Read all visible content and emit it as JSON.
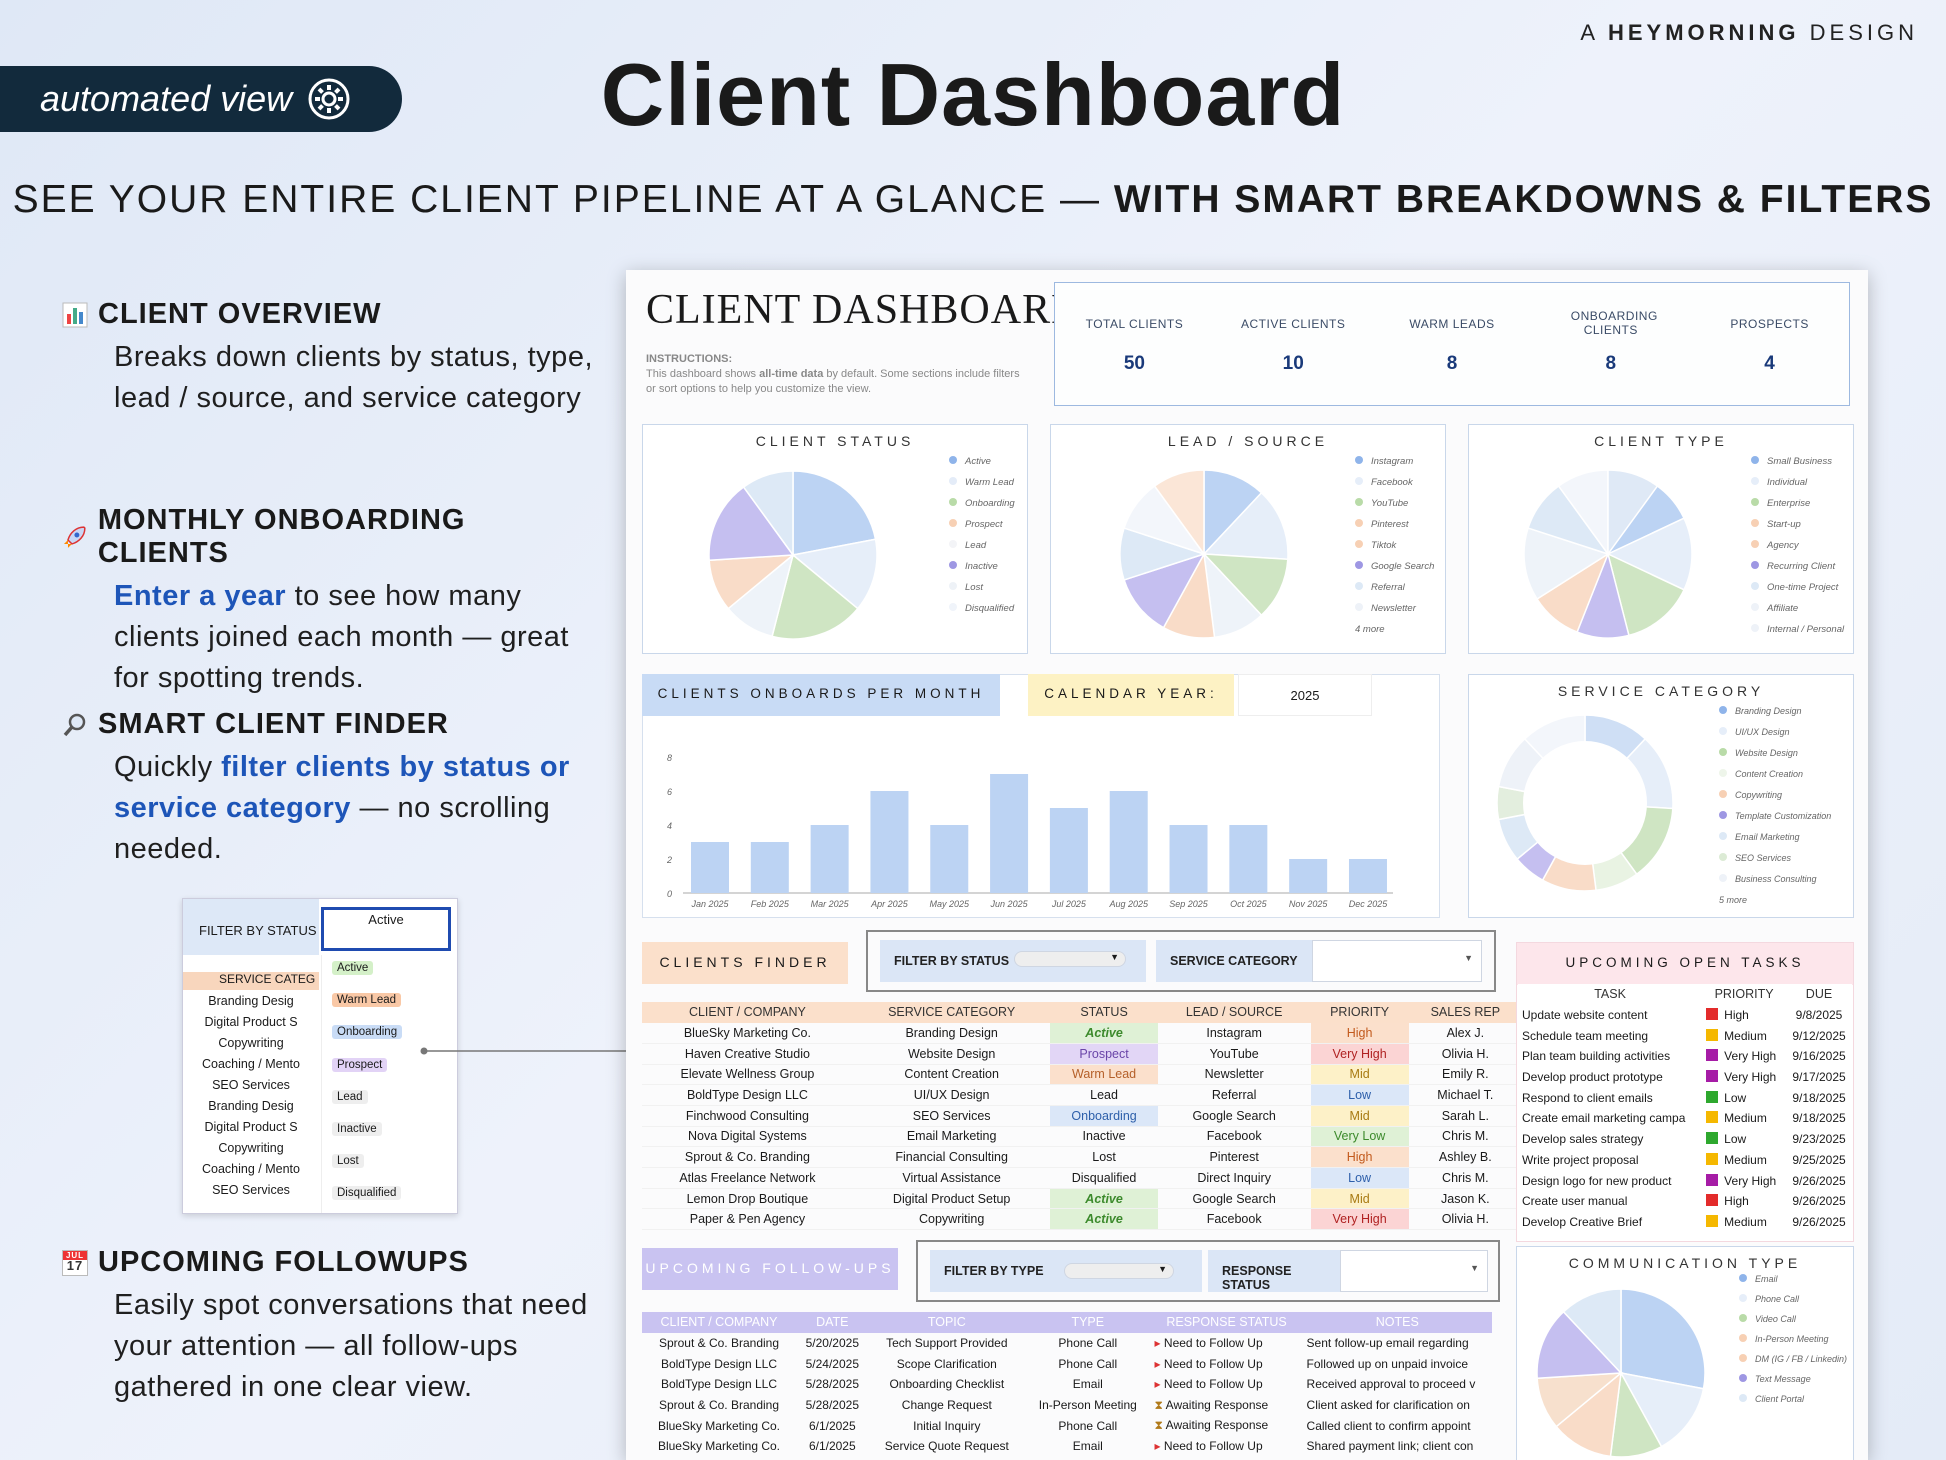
{
  "header": {
    "brand_prefix": "A",
    "brand_name": "HEYMORNING",
    "brand_suffix": "DESIGN",
    "auto_pill": "automated view",
    "title": "Client Dashboard",
    "subtitle_a": "SEE YOUR ENTIRE CLIENT PIPELINE AT A GLANCE —",
    "subtitle_b": "WITH SMART BREAKDOWNS & FILTERS"
  },
  "features": [
    {
      "title": "CLIENT OVERVIEW",
      "icon": "bar-chart-icon",
      "desc": "Breaks down clients by status, type, lead / source, and service category"
    },
    {
      "title": "MONTHLY ONBOARDING CLIENTS",
      "icon": "rocket-icon",
      "desc_hl": "Enter a year",
      "desc": " to see how many clients joined each month — great for spotting trends."
    },
    {
      "title": "SMART CLIENT FINDER",
      "icon": "magnifier-icon",
      "desc_pre": "Quickly ",
      "desc_hl": "filter clients by status or service category",
      "desc": " — no scrolling needed."
    },
    {
      "title": "UPCOMING FOLLOWUPS",
      "icon": "calendar-icon",
      "desc": "Easily spot conversations that need your attention — all follow-ups gathered in one clear view."
    }
  ],
  "calendar_icon_day": "17",
  "calendar_icon_month": "JUL",
  "inset": {
    "filter_label": "FILTER BY STATUS",
    "selected": "Active",
    "service_label": "SERVICE CATEG",
    "services": [
      "Branding Desig",
      "Digital Product S",
      "Copywriting",
      "Coaching / Mento",
      "SEO Services",
      "Branding Desig",
      "Digital Product S",
      "Copywriting",
      "Coaching / Mento",
      "SEO Services"
    ],
    "options": [
      {
        "label": "Active",
        "color": "#d4f0c8"
      },
      {
        "label": "Warm Lead",
        "color": "#f9c8a6"
      },
      {
        "label": "Onboarding",
        "color": "#c9dcf6"
      },
      {
        "label": "Prospect",
        "color": "#e2d3f6"
      },
      {
        "label": "Lead",
        "color": "#eeeeee"
      },
      {
        "label": "Inactive",
        "color": "#eeeeee"
      },
      {
        "label": "Lost",
        "color": "#eeeeee"
      },
      {
        "label": "Disqualified",
        "color": "#eeeeee"
      }
    ]
  },
  "dashboard": {
    "title": "CLIENT DASHBOARD",
    "instructions_label": "INSTRUCTIONS:",
    "instructions_pre": "This dashboard shows ",
    "instructions_bold": "all-time data",
    "instructions_post": " by default. Some sections include filters or sort options to help you customize the view.",
    "kpis": [
      {
        "label": "TOTAL CLIENTS",
        "value": "50"
      },
      {
        "label": "ACTIVE CLIENTS",
        "value": "10"
      },
      {
        "label": "WARM LEADS",
        "value": "8"
      },
      {
        "label": "ONBOARDING CLIENTS",
        "value": "8"
      },
      {
        "label": "PROSPECTS",
        "value": "4"
      }
    ],
    "status_title": "CLIENT STATUS",
    "status_legend": [
      "Active",
      "Warm Lead",
      "Onboarding",
      "Prospect",
      "Lead",
      "Inactive",
      "Lost",
      "Disqualified"
    ],
    "source_title": "LEAD / SOURCE",
    "source_legend": [
      "Instagram",
      "Facebook",
      "YouTube",
      "Pinterest",
      "Tiktok",
      "Google Search",
      "Referral",
      "Newsletter"
    ],
    "source_more": "4 more",
    "type_title": "CLIENT TYPE",
    "type_legend": [
      "Small Business",
      "Individual",
      "Enterprise",
      "Start-up",
      "Agency",
      "Recurring Client",
      "One-time Project",
      "Affiliate",
      "Internal / Personal"
    ],
    "onboard_title": "CLIENTS ONBOARDS PER MONTH",
    "calendar_label": "CALENDAR YEAR:",
    "calendar_value": "2025",
    "service_title": "SERVICE CATEGORY",
    "service_legend": [
      "Branding Design",
      "UI/UX Design",
      "Website Design",
      "Content Creation",
      "Copywriting",
      "Template Customization",
      "Email Marketing",
      "SEO Services",
      "Business Consulting"
    ],
    "service_more": "5 more",
    "finder_title": "CLIENTS FINDER",
    "filter_status_label": "FILTER BY STATUS",
    "filter_service_label": "SERVICE CATEGORY",
    "finder_headers": [
      "CLIENT / COMPANY",
      "SERVICE CATEGORY",
      "STATUS",
      "LEAD / SOURCE",
      "PRIORITY",
      "SALES REP"
    ],
    "finder_rows": [
      [
        "BlueSky Marketing Co.",
        "Branding Design",
        "Active",
        "Instagram",
        "High",
        "Alex J."
      ],
      [
        "Haven Creative Studio",
        "Website Design",
        "Prospect",
        "YouTube",
        "Very High",
        "Olivia H."
      ],
      [
        "Elevate Wellness Group",
        "Content Creation",
        "Warm Lead",
        "Newsletter",
        "Mid",
        "Emily R."
      ],
      [
        "BoldType Design LLC",
        "UI/UX Design",
        "Lead",
        "Referral",
        "Low",
        "Michael T."
      ],
      [
        "Finchwood Consulting",
        "SEO Services",
        "Onboarding",
        "Google Search",
        "Mid",
        "Sarah L."
      ],
      [
        "Nova Digital Systems",
        "Email Marketing",
        "Inactive",
        "Facebook",
        "Very Low",
        "Chris M."
      ],
      [
        "Sprout & Co. Branding",
        "Financial Consulting",
        "Lost",
        "Pinterest",
        "High",
        "Ashley B."
      ],
      [
        "Atlas Freelance Network",
        "Virtual Assistance",
        "Disqualified",
        "Direct Inquiry",
        "Low",
        "Chris M."
      ],
      [
        "Lemon Drop Boutique",
        "Digital Product Setup",
        "Active",
        "Google Search",
        "Mid",
        "Jason K."
      ],
      [
        "Paper & Pen Agency",
        "Copywriting",
        "Active",
        "Facebook",
        "Very High",
        "Olivia H."
      ]
    ],
    "tasks_title": "UPCOMING OPEN TASKS",
    "tasks_headers": [
      "TASK",
      "PRIORITY",
      "DUE"
    ],
    "tasks_rows": [
      [
        "Update website content",
        "High",
        "9/8/2025"
      ],
      [
        "Schedule team meeting",
        "Medium",
        "9/12/2025"
      ],
      [
        "Plan team building activities",
        "Very High",
        "9/16/2025"
      ],
      [
        "Develop product prototype",
        "Very High",
        "9/17/2025"
      ],
      [
        "Respond to client emails",
        "Low",
        "9/18/2025"
      ],
      [
        "Create email marketing campa",
        "Medium",
        "9/18/2025"
      ],
      [
        "Develop sales strategy",
        "Low",
        "9/23/2025"
      ],
      [
        "Write project proposal",
        "Medium",
        "9/25/2025"
      ],
      [
        "Design logo for new product",
        "Very High",
        "9/26/2025"
      ],
      [
        "Create user manual",
        "High",
        "9/26/2025"
      ],
      [
        "Develop Creative Brief",
        "Medium",
        "9/26/2025"
      ]
    ],
    "followups_title": "UPCOMING FOLLOW-UPS",
    "filter_type_label": "FILTER BY TYPE",
    "response_status_label": "RESPONSE STATUS",
    "followup_headers": [
      "CLIENT / COMPANY",
      "DATE",
      "TOPIC",
      "TYPE",
      "RESPONSE STATUS",
      "NOTES"
    ],
    "followup_rows": [
      [
        "Sprout & Co. Branding",
        "5/20/2025",
        "Tech Support Provided",
        "Phone Call",
        "Need to Follow Up",
        "Sent follow-up email regarding"
      ],
      [
        "BoldType Design LLC",
        "5/24/2025",
        "Scope Clarification",
        "Phone Call",
        "Need to Follow Up",
        "Followed up on unpaid invoice"
      ],
      [
        "BoldType Design LLC",
        "5/28/2025",
        "Onboarding Checklist",
        "Email",
        "Need to Follow Up",
        "Received approval to proceed v"
      ],
      [
        "Sprout & Co. Branding",
        "5/28/2025",
        "Change Request",
        "In-Person Meeting",
        "Awaiting Response",
        "Client asked for clarification on"
      ],
      [
        "BlueSky Marketing Co.",
        "6/1/2025",
        "Initial Inquiry",
        "Phone Call",
        "Awaiting Response",
        "Called client to confirm appoint"
      ],
      [
        "BlueSky Marketing Co.",
        "6/1/2025",
        "Service Quote Request",
        "Email",
        "Need to Follow Up",
        "Shared payment link; client con"
      ]
    ],
    "comm_title": "COMMUNICATION TYPE",
    "comm_legend": [
      "Email",
      "Phone Call",
      "Video Call",
      "In-Person Meeting",
      "DM (IG / FB / Linkedin)",
      "Text Message",
      "Client Portal"
    ]
  },
  "chart_data": {
    "type": "bar",
    "categories": [
      "Jan 2025",
      "Feb 2025",
      "Mar 2025",
      "Apr 2025",
      "May 2025",
      "Jun 2025",
      "Jul 2025",
      "Aug 2025",
      "Sep 2025",
      "Oct 2025",
      "Nov 2025",
      "Dec 2025"
    ],
    "values": [
      3,
      3,
      4,
      6,
      4,
      7,
      5,
      6,
      4,
      4,
      2,
      2
    ],
    "ylim": [
      0,
      8
    ],
    "yticks": [
      "0",
      "2",
      "4",
      "6",
      "8"
    ],
    "bar_color": "#bcd3f3"
  }
}
